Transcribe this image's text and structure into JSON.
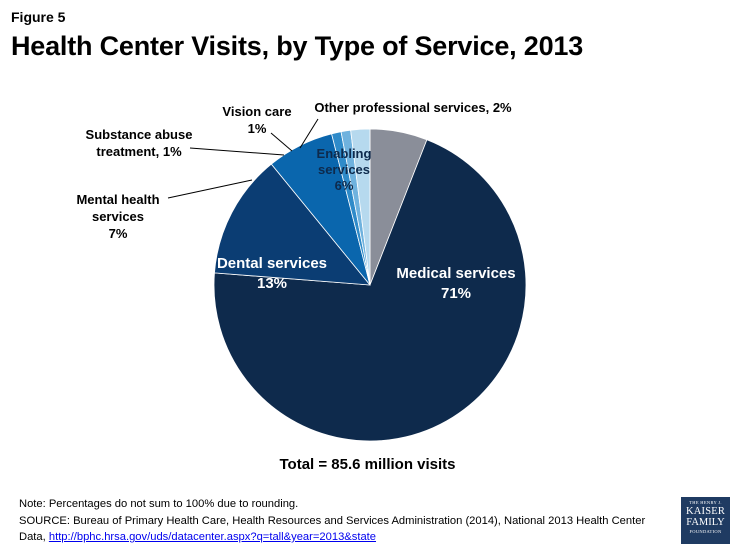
{
  "figure_label": "Figure 5",
  "chart_data": {
    "type": "pie",
    "title": "Health Center Visits, by Type of Service, 2013",
    "slices": [
      {
        "key": "enabling",
        "name": "Enabling services",
        "value": 6,
        "label_lines": [
          "Enabling",
          "services",
          "6%"
        ],
        "color": "#8a8e99"
      },
      {
        "key": "medical",
        "name": "Medical services",
        "value": 71,
        "label_lines": [
          "Medical services",
          "71%"
        ],
        "color": "#0e2a4c"
      },
      {
        "key": "dental",
        "name": "Dental services",
        "value": 13,
        "label_lines": [
          "Dental services",
          "13%"
        ],
        "color": "#0b3d73"
      },
      {
        "key": "mental",
        "name": "Mental health services",
        "value": 7,
        "label_lines": [
          "Mental health",
          "services",
          "7%"
        ],
        "color": "#0a66ad"
      },
      {
        "key": "substance",
        "name": "Substance abuse treatment",
        "value": 1,
        "label_lines": [
          "Substance abuse",
          "treatment, 1%"
        ],
        "color": "#2f8bc9"
      },
      {
        "key": "vision",
        "name": "Vision care",
        "value": 1,
        "label_lines": [
          "Vision care",
          "1%"
        ],
        "color": "#6fb2de"
      },
      {
        "key": "other",
        "name": "Other professional services",
        "value": 2,
        "label_lines": [
          "Other professional services, 2%"
        ],
        "color": "#b6d9ee"
      }
    ],
    "total_label": "Total = 85.6 million visits"
  },
  "note": "Note: Percentages do not sum to 100% due to rounding.",
  "source_text": "SOURCE: Bureau of Primary Health Care, Health Resources and Services Administration (2014), National 2013 Health Center Data, ",
  "source_link": "http://bphc.hrsa.gov/uds/datacenter.aspx?q=tall&year=2013&state",
  "logo": {
    "line1": "THE HENRY J.",
    "line2": "KAISER",
    "line3": "FAMILY",
    "line4": "FOUNDATION"
  }
}
